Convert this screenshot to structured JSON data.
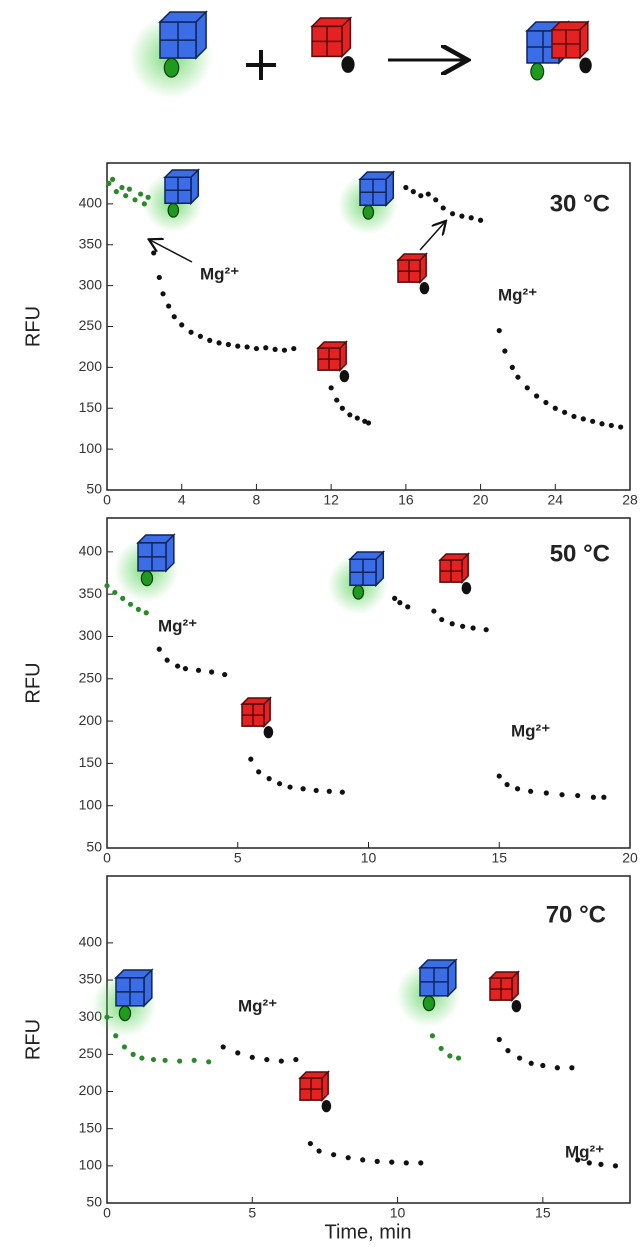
{
  "chart_data": [
    {
      "type": "scatter",
      "ylabel": "RFU",
      "xlim": [
        0,
        28
      ],
      "ylim": [
        50,
        450
      ],
      "xticks": [
        0,
        4,
        8,
        12,
        16,
        20,
        24,
        28
      ],
      "yticks": [
        50,
        100,
        150,
        200,
        250,
        300,
        350,
        400
      ],
      "annotations": [
        {
          "text": "30 °C"
        },
        {
          "text": "Mg²⁺"
        },
        {
          "text": "Mg²⁺"
        }
      ],
      "series": [
        {
          "color": "#2a8a2a",
          "x": [
            0.1,
            0.3,
            0.5,
            0.8,
            1.0,
            1.2,
            1.5,
            1.8,
            2.0,
            2.2
          ],
          "values": [
            425,
            430,
            415,
            420,
            410,
            418,
            405,
            412,
            400,
            408
          ]
        },
        {
          "color": "#111111",
          "x": [
            2.5,
            2.8,
            3.0,
            3.3,
            3.6,
            4,
            4.5,
            5,
            5.5,
            6,
            6.5,
            7,
            7.5,
            8,
            8.5,
            9,
            9.5,
            10
          ],
          "values": [
            340,
            310,
            290,
            275,
            262,
            252,
            243,
            238,
            233,
            230,
            228,
            226,
            225,
            223,
            224,
            222,
            221,
            223
          ]
        },
        {
          "color": "#111111",
          "x": [
            12,
            12.3,
            12.6,
            13,
            13.4,
            13.8,
            14
          ],
          "values": [
            175,
            160,
            150,
            142,
            138,
            134,
            132
          ]
        },
        {
          "color": "#111111",
          "x": [
            16,
            16.4,
            16.8,
            17.2,
            17.6,
            18,
            18.5,
            19,
            19.5,
            20
          ],
          "values": [
            420,
            415,
            410,
            412,
            405,
            395,
            388,
            385,
            383,
            380
          ]
        },
        {
          "color": "#111111",
          "x": [
            21,
            21.3,
            21.7,
            22,
            22.5,
            23,
            23.5,
            24,
            24.5,
            25,
            25.5,
            26,
            26.5,
            27,
            27.5
          ],
          "values": [
            245,
            220,
            200,
            188,
            175,
            165,
            157,
            150,
            145,
            140,
            137,
            134,
            131,
            129,
            127
          ]
        }
      ]
    },
    {
      "type": "scatter",
      "ylabel": "RFU",
      "xlim": [
        0,
        20
      ],
      "ylim": [
        50,
        440
      ],
      "xticks": [
        0,
        5,
        10,
        15,
        20
      ],
      "yticks": [
        50,
        100,
        150,
        200,
        250,
        300,
        350,
        400
      ],
      "annotations": [
        {
          "text": "50 °C"
        },
        {
          "text": "Mg²⁺"
        },
        {
          "text": "Mg²⁺"
        }
      ],
      "series": [
        {
          "color": "#2a8a2a",
          "x": [
            0,
            0.3,
            0.6,
            0.9,
            1.2,
            1.5
          ],
          "values": [
            360,
            352,
            345,
            338,
            332,
            328
          ]
        },
        {
          "color": "#111111",
          "x": [
            2,
            2.3,
            2.7,
            3,
            3.5,
            4,
            4.5
          ],
          "values": [
            285,
            272,
            265,
            262,
            260,
            258,
            255
          ]
        },
        {
          "color": "#111111",
          "x": [
            5.5,
            5.8,
            6.2,
            6.6,
            7,
            7.5,
            8,
            8.5,
            9
          ],
          "values": [
            155,
            140,
            132,
            126,
            122,
            120,
            118,
            117,
            116
          ]
        },
        {
          "color": "#111111",
          "x": [
            11,
            11.2,
            11.5
          ],
          "values": [
            345,
            340,
            335
          ]
        },
        {
          "color": "#111111",
          "x": [
            12.5,
            12.8,
            13.2,
            13.6,
            14,
            14.5
          ],
          "values": [
            330,
            320,
            315,
            312,
            310,
            308
          ]
        },
        {
          "color": "#111111",
          "x": [
            15,
            15.3,
            15.7,
            16.2,
            16.8,
            17.4,
            18,
            18.6,
            19
          ],
          "values": [
            135,
            125,
            120,
            117,
            115,
            113,
            112,
            110,
            110
          ]
        }
      ]
    },
    {
      "type": "scatter",
      "ylabel": "RFU",
      "xlabel": "Time, min",
      "xlim": [
        0,
        18
      ],
      "ylim": [
        50,
        490
      ],
      "xticks": [
        0,
        5,
        10,
        15
      ],
      "yticks": [
        50,
        100,
        150,
        200,
        250,
        300,
        350,
        400
      ],
      "annotations": [
        {
          "text": "70 °C"
        },
        {
          "text": "Mg²⁺"
        },
        {
          "text": "Mg²⁺"
        }
      ],
      "series": [
        {
          "color": "#2a8a2a",
          "x": [
            0,
            0.3,
            0.6,
            0.9,
            1.2,
            1.6,
            2,
            2.5,
            3,
            3.5
          ],
          "values": [
            300,
            275,
            260,
            250,
            245,
            243,
            242,
            241,
            242,
            240
          ]
        },
        {
          "color": "#111111",
          "x": [
            4,
            4.5,
            5,
            5.5,
            6,
            6.5
          ],
          "values": [
            260,
            252,
            246,
            243,
            241,
            243
          ]
        },
        {
          "color": "#111111",
          "x": [
            7,
            7.3,
            7.8,
            8.3,
            8.8,
            9.3,
            9.8,
            10.3,
            10.8
          ],
          "values": [
            130,
            120,
            115,
            111,
            108,
            106,
            105,
            104,
            104
          ]
        },
        {
          "color": "#2a8a2a",
          "x": [
            11.2,
            11.5,
            11.8,
            12.1
          ],
          "values": [
            275,
            258,
            248,
            245
          ]
        },
        {
          "color": "#111111",
          "x": [
            13.5,
            13.8,
            14.2,
            14.6,
            15,
            15.5,
            16
          ],
          "values": [
            270,
            255,
            245,
            238,
            235,
            232,
            232
          ]
        },
        {
          "color": "#111111",
          "x": [
            16.2,
            16.6,
            17,
            17.5
          ],
          "values": [
            108,
            104,
            102,
            100
          ]
        }
      ]
    }
  ]
}
